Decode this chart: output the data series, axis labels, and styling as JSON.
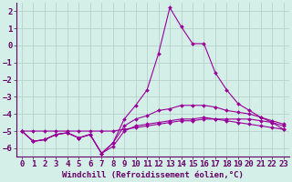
{
  "xlabel": "Windchill (Refroidissement éolien,°C)",
  "bg_color": "#d4eee8",
  "grid_color": "#b0ccc4",
  "line_color": "#990099",
  "xlim": [
    -0.5,
    23.5
  ],
  "ylim": [
    -6.5,
    2.5
  ],
  "yticks": [
    2,
    1,
    0,
    -1,
    -2,
    -3,
    -4,
    -5,
    -6
  ],
  "xticks": [
    0,
    1,
    2,
    3,
    4,
    5,
    6,
    7,
    8,
    9,
    10,
    11,
    12,
    13,
    14,
    15,
    16,
    17,
    18,
    19,
    20,
    21,
    22,
    23
  ],
  "line1_y": [
    -5.0,
    -5.6,
    -5.5,
    -5.2,
    -5.1,
    -5.4,
    -5.2,
    -6.3,
    -5.7,
    -4.3,
    -3.5,
    -2.6,
    -0.5,
    2.2,
    1.1,
    0.1,
    0.1,
    -1.6,
    -2.6,
    -3.4,
    -3.8,
    -4.2,
    -4.5,
    -4.9
  ],
  "line2_y": [
    -5.0,
    -5.6,
    -5.5,
    -5.2,
    -5.1,
    -5.4,
    -5.2,
    -6.3,
    -5.7,
    -4.7,
    -4.3,
    -4.1,
    -3.8,
    -3.7,
    -3.5,
    -3.5,
    -3.5,
    -3.6,
    -3.8,
    -3.9,
    -4.0,
    -4.2,
    -4.4,
    -4.6
  ],
  "line3_y": [
    -5.0,
    -5.6,
    -5.5,
    -5.2,
    -5.1,
    -5.4,
    -5.2,
    -6.3,
    -5.9,
    -5.0,
    -4.7,
    -4.6,
    -4.5,
    -4.4,
    -4.3,
    -4.3,
    -4.2,
    -4.3,
    -4.4,
    -4.5,
    -4.6,
    -4.7,
    -4.8,
    -4.9
  ],
  "line4_y": [
    -5.0,
    -5.0,
    -5.0,
    -5.0,
    -5.0,
    -5.0,
    -5.0,
    -5.0,
    -5.0,
    -4.9,
    -4.8,
    -4.7,
    -4.6,
    -4.5,
    -4.4,
    -4.4,
    -4.3,
    -4.3,
    -4.3,
    -4.3,
    -4.3,
    -4.4,
    -4.5,
    -4.7
  ],
  "marker_size": 2.0,
  "linewidth": 0.8,
  "font_size": 6.5
}
